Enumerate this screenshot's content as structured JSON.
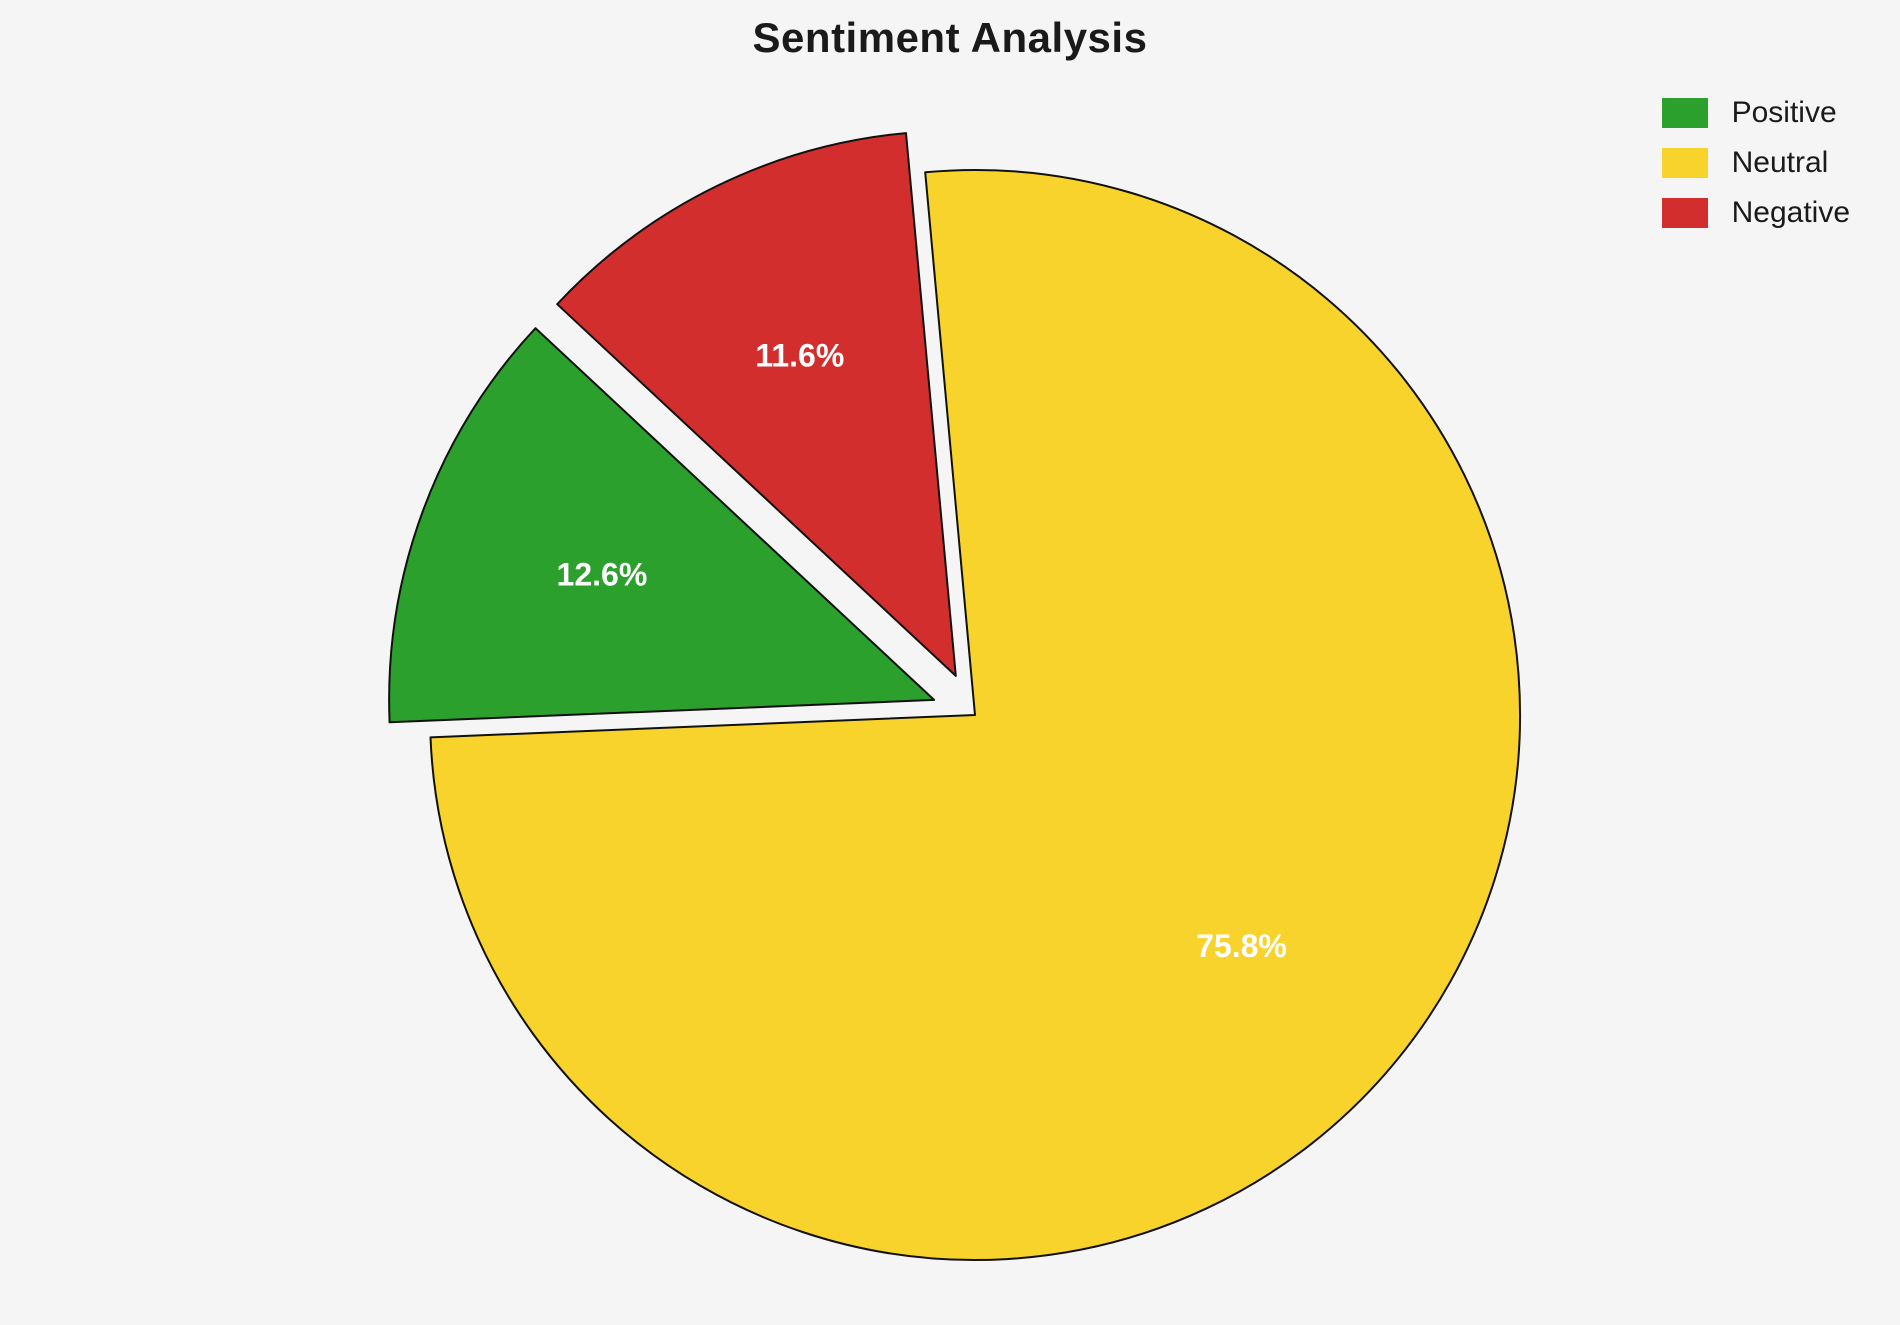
{
  "title": "Sentiment Analysis",
  "background_color": "#f5f5f5",
  "chart_data": {
    "type": "pie",
    "title": "Sentiment Analysis",
    "labels": [
      "Positive",
      "Neutral",
      "Negative"
    ],
    "values": [
      12.6,
      75.8,
      11.6
    ],
    "value_labels": [
      "12.6%",
      "75.8%",
      "11.6%"
    ],
    "colors": [
      "#2ca02c",
      "#f8d32b",
      "#d32e2e"
    ],
    "explode": [
      0.08,
      0,
      0.08
    ],
    "startangle": 137,
    "counterclock": true,
    "edge_color": "#111111",
    "edge_width": 2,
    "label_color": "#ffffff",
    "pct_distance": 0.65,
    "legend": {
      "position": "upper right",
      "entries": [
        "Positive",
        "Neutral",
        "Negative"
      ]
    }
  }
}
